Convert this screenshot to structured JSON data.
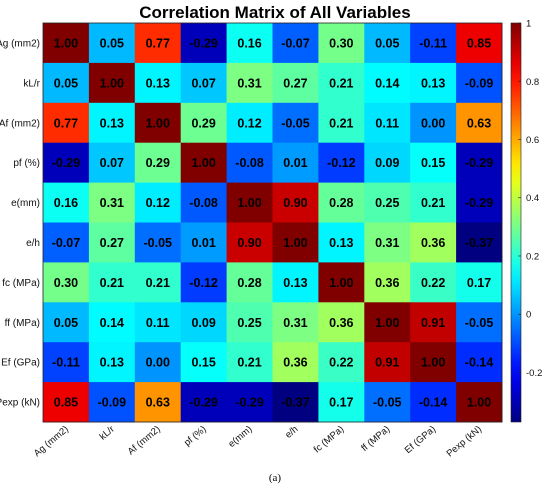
{
  "chart_data": {
    "type": "heatmap",
    "title": "Correlation Matrix of All Variables",
    "caption": "(a)",
    "variables": [
      "Ag (mm2)",
      "kL/r",
      "Af (mm2)",
      "pf (%)",
      "e(mm)",
      "e/h",
      "fc (MPa)",
      "ff (MPa)",
      "Ef (GPa)",
      "Pexp (kN)"
    ],
    "values": [
      [
        1.0,
        0.05,
        0.77,
        -0.29,
        0.16,
        -0.07,
        0.3,
        0.05,
        -0.11,
        0.85
      ],
      [
        0.05,
        1.0,
        0.13,
        0.07,
        0.31,
        0.27,
        0.21,
        0.14,
        0.13,
        -0.09
      ],
      [
        0.77,
        0.13,
        1.0,
        0.29,
        0.12,
        -0.05,
        0.21,
        0.11,
        0.0,
        0.63
      ],
      [
        -0.29,
        0.07,
        0.29,
        1.0,
        -0.08,
        0.01,
        -0.12,
        0.09,
        0.15,
        -0.29
      ],
      [
        0.16,
        0.31,
        0.12,
        -0.08,
        1.0,
        0.9,
        0.28,
        0.25,
        0.21,
        -0.29
      ],
      [
        -0.07,
        0.27,
        -0.05,
        0.01,
        0.9,
        1.0,
        0.13,
        0.31,
        0.36,
        -0.37
      ],
      [
        0.3,
        0.21,
        0.21,
        -0.12,
        0.28,
        0.13,
        1.0,
        0.36,
        0.22,
        0.17
      ],
      [
        0.05,
        0.14,
        0.11,
        0.09,
        0.25,
        0.31,
        0.36,
        1.0,
        0.91,
        -0.05
      ],
      [
        -0.11,
        0.13,
        0.0,
        0.15,
        0.21,
        0.36,
        0.22,
        0.91,
        1.0,
        -0.14
      ],
      [
        0.85,
        -0.09,
        0.63,
        -0.29,
        -0.29,
        -0.37,
        0.17,
        -0.05,
        -0.14,
        1.0
      ]
    ],
    "colorbar": {
      "colormap": "jet",
      "range": [
        -0.37,
        1.0
      ],
      "ticks": [
        -0.2,
        0,
        0.2,
        0.4,
        0.6,
        0.8,
        1
      ]
    },
    "grid": false
  }
}
